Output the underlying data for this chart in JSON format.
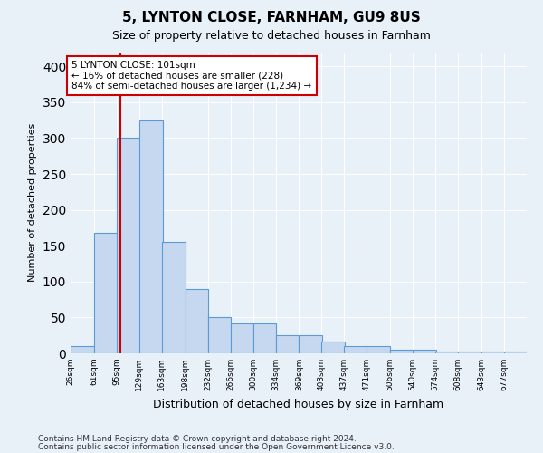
{
  "title_line1": "5, LYNTON CLOSE, FARNHAM, GU9 8US",
  "title_line2": "Size of property relative to detached houses in Farnham",
  "xlabel": "Distribution of detached houses by size in Farnham",
  "ylabel": "Number of detached properties",
  "footer_line1": "Contains HM Land Registry data © Crown copyright and database right 2024.",
  "footer_line2": "Contains public sector information licensed under the Open Government Licence v3.0.",
  "annotation_line1": "5 LYNTON CLOSE: 101sqm",
  "annotation_line2": "← 16% of detached houses are smaller (228)",
  "annotation_line3": "84% of semi-detached houses are larger (1,234) →",
  "bin_edges": [
    26,
    61,
    95,
    129,
    163,
    198,
    232,
    266,
    300,
    334,
    369,
    403,
    437,
    471,
    506,
    540,
    574,
    608,
    643,
    677,
    711
  ],
  "bar_heights": [
    10,
    168,
    300,
    325,
    155,
    90,
    50,
    42,
    42,
    25,
    25,
    17,
    10,
    10,
    5,
    5,
    2,
    2,
    2,
    2
  ],
  "bar_color": "#c5d8f0",
  "bar_edge_color": "#5b9bd5",
  "vline_color": "#cc0000",
  "vline_x": 101,
  "annotation_box_edge": "#cc0000",
  "background_color": "#e8f0f8",
  "grid_color": "#ffffff",
  "ylim": [
    0,
    420
  ],
  "yticks": [
    0,
    50,
    100,
    150,
    200,
    250,
    300,
    350,
    400
  ]
}
